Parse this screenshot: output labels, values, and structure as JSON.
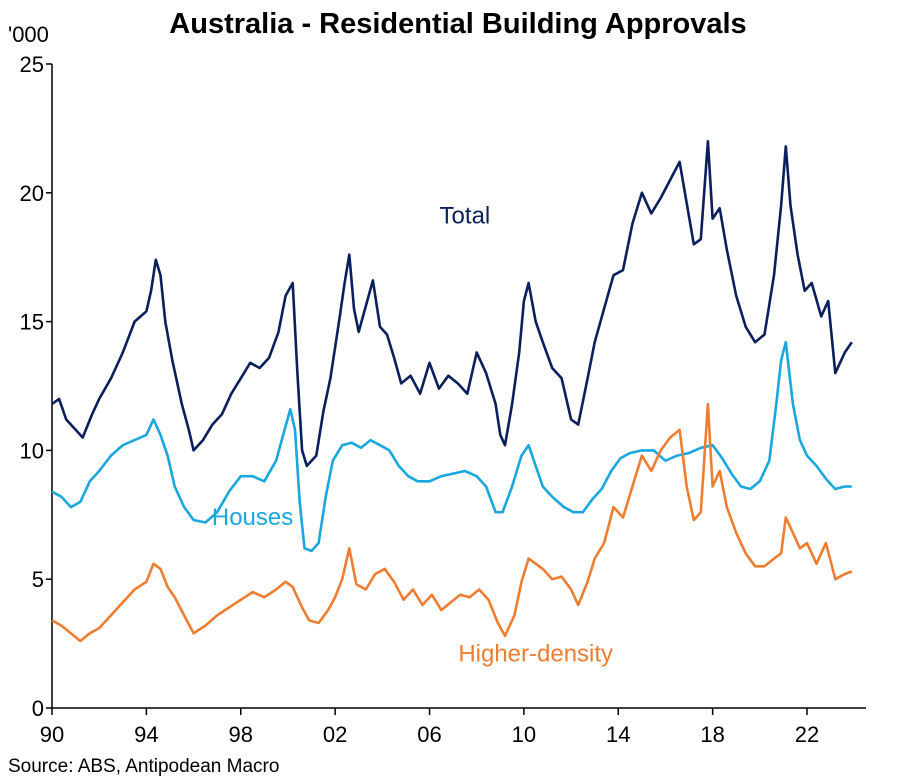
{
  "chart_data": {
    "type": "line",
    "title": "Australia - Residential Building Approvals",
    "unit_label": "'000",
    "source": "Source: ABS, Antipodean Macro",
    "ylim": [
      0,
      25
    ],
    "y_ticks": [
      "0",
      "5",
      "10",
      "15",
      "20",
      "25"
    ],
    "xlim": [
      1990,
      2024.5
    ],
    "x_ticks": [
      {
        "label": "90",
        "year": 1990
      },
      {
        "label": "94",
        "year": 1994
      },
      {
        "label": "98",
        "year": 1998
      },
      {
        "label": "02",
        "year": 2002
      },
      {
        "label": "06",
        "year": 2006
      },
      {
        "label": "10",
        "year": 2010
      },
      {
        "label": "14",
        "year": 2014
      },
      {
        "label": "18",
        "year": 2018
      },
      {
        "label": "22",
        "year": 2022
      }
    ],
    "grid": false,
    "series": [
      {
        "name": "Total",
        "color": "#0a1f5c",
        "label_at": [
          2007.5,
          18.8
        ],
        "points": [
          [
            1990.0,
            11.8
          ],
          [
            1990.3,
            12.0
          ],
          [
            1990.6,
            11.2
          ],
          [
            1991.0,
            10.8
          ],
          [
            1991.3,
            10.5
          ],
          [
            1991.7,
            11.4
          ],
          [
            1992.0,
            12.0
          ],
          [
            1992.5,
            12.8
          ],
          [
            1993.0,
            13.8
          ],
          [
            1993.5,
            15.0
          ],
          [
            1994.0,
            15.4
          ],
          [
            1994.2,
            16.2
          ],
          [
            1994.4,
            17.4
          ],
          [
            1994.6,
            16.8
          ],
          [
            1994.8,
            15.0
          ],
          [
            1995.1,
            13.5
          ],
          [
            1995.5,
            11.8
          ],
          [
            1995.8,
            10.8
          ],
          [
            1996.0,
            10.0
          ],
          [
            1996.4,
            10.4
          ],
          [
            1996.8,
            11.0
          ],
          [
            1997.2,
            11.4
          ],
          [
            1997.6,
            12.2
          ],
          [
            1998.0,
            12.8
          ],
          [
            1998.4,
            13.4
          ],
          [
            1998.8,
            13.2
          ],
          [
            1999.2,
            13.6
          ],
          [
            1999.6,
            14.6
          ],
          [
            1999.9,
            16.0
          ],
          [
            2000.2,
            16.5
          ],
          [
            2000.4,
            13.0
          ],
          [
            2000.6,
            10.0
          ],
          [
            2000.8,
            9.4
          ],
          [
            2001.2,
            9.8
          ],
          [
            2001.5,
            11.5
          ],
          [
            2001.8,
            12.8
          ],
          [
            2002.0,
            14.0
          ],
          [
            2002.2,
            15.2
          ],
          [
            2002.4,
            16.5
          ],
          [
            2002.6,
            17.6
          ],
          [
            2002.8,
            15.5
          ],
          [
            2003.0,
            14.6
          ],
          [
            2003.3,
            15.6
          ],
          [
            2003.6,
            16.6
          ],
          [
            2003.9,
            14.8
          ],
          [
            2004.2,
            14.5
          ],
          [
            2004.5,
            13.6
          ],
          [
            2004.8,
            12.6
          ],
          [
            2005.2,
            12.9
          ],
          [
            2005.6,
            12.2
          ],
          [
            2006.0,
            13.4
          ],
          [
            2006.4,
            12.4
          ],
          [
            2006.8,
            12.9
          ],
          [
            2007.2,
            12.6
          ],
          [
            2007.6,
            12.2
          ],
          [
            2008.0,
            13.8
          ],
          [
            2008.4,
            13.0
          ],
          [
            2008.8,
            11.8
          ],
          [
            2009.0,
            10.6
          ],
          [
            2009.2,
            10.2
          ],
          [
            2009.5,
            11.8
          ],
          [
            2009.8,
            13.8
          ],
          [
            2010.0,
            15.8
          ],
          [
            2010.2,
            16.5
          ],
          [
            2010.5,
            15.0
          ],
          [
            2010.8,
            14.2
          ],
          [
            2011.2,
            13.2
          ],
          [
            2011.6,
            12.8
          ],
          [
            2012.0,
            11.2
          ],
          [
            2012.3,
            11.0
          ],
          [
            2012.7,
            12.8
          ],
          [
            2013.0,
            14.2
          ],
          [
            2013.4,
            15.5
          ],
          [
            2013.8,
            16.8
          ],
          [
            2014.2,
            17.0
          ],
          [
            2014.6,
            18.8
          ],
          [
            2015.0,
            20.0
          ],
          [
            2015.4,
            19.2
          ],
          [
            2015.8,
            19.8
          ],
          [
            2016.2,
            20.5
          ],
          [
            2016.6,
            21.2
          ],
          [
            2016.9,
            19.6
          ],
          [
            2017.2,
            18.0
          ],
          [
            2017.5,
            18.2
          ],
          [
            2017.8,
            22.0
          ],
          [
            2018.0,
            19.0
          ],
          [
            2018.3,
            19.4
          ],
          [
            2018.6,
            17.8
          ],
          [
            2019.0,
            16.0
          ],
          [
            2019.4,
            14.8
          ],
          [
            2019.8,
            14.2
          ],
          [
            2020.2,
            14.5
          ],
          [
            2020.6,
            16.8
          ],
          [
            2020.9,
            19.5
          ],
          [
            2021.1,
            21.8
          ],
          [
            2021.3,
            19.5
          ],
          [
            2021.6,
            17.6
          ],
          [
            2021.9,
            16.2
          ],
          [
            2022.2,
            16.5
          ],
          [
            2022.6,
            15.2
          ],
          [
            2022.9,
            15.8
          ],
          [
            2023.2,
            13.0
          ],
          [
            2023.6,
            13.8
          ],
          [
            2023.9,
            14.2
          ]
        ]
      },
      {
        "name": "Houses",
        "color": "#1aa7e0",
        "label_at": [
          1998.5,
          7.1
        ],
        "points": [
          [
            1990.0,
            8.4
          ],
          [
            1990.4,
            8.2
          ],
          [
            1990.8,
            7.8
          ],
          [
            1991.2,
            8.0
          ],
          [
            1991.6,
            8.8
          ],
          [
            1992.0,
            9.2
          ],
          [
            1992.5,
            9.8
          ],
          [
            1993.0,
            10.2
          ],
          [
            1993.5,
            10.4
          ],
          [
            1994.0,
            10.6
          ],
          [
            1994.3,
            11.2
          ],
          [
            1994.6,
            10.6
          ],
          [
            1994.9,
            9.8
          ],
          [
            1995.2,
            8.6
          ],
          [
            1995.6,
            7.8
          ],
          [
            1996.0,
            7.3
          ],
          [
            1996.5,
            7.2
          ],
          [
            1997.0,
            7.6
          ],
          [
            1997.5,
            8.4
          ],
          [
            1998.0,
            9.0
          ],
          [
            1998.5,
            9.0
          ],
          [
            1999.0,
            8.8
          ],
          [
            1999.5,
            9.6
          ],
          [
            1999.8,
            10.6
          ],
          [
            2000.1,
            11.6
          ],
          [
            2000.3,
            10.8
          ],
          [
            2000.5,
            8.0
          ],
          [
            2000.7,
            6.2
          ],
          [
            2001.0,
            6.1
          ],
          [
            2001.3,
            6.4
          ],
          [
            2001.6,
            8.2
          ],
          [
            2001.9,
            9.6
          ],
          [
            2002.3,
            10.2
          ],
          [
            2002.7,
            10.3
          ],
          [
            2003.1,
            10.1
          ],
          [
            2003.5,
            10.4
          ],
          [
            2003.9,
            10.2
          ],
          [
            2004.3,
            10.0
          ],
          [
            2004.7,
            9.4
          ],
          [
            2005.1,
            9.0
          ],
          [
            2005.5,
            8.8
          ],
          [
            2006.0,
            8.8
          ],
          [
            2006.5,
            9.0
          ],
          [
            2007.0,
            9.1
          ],
          [
            2007.5,
            9.2
          ],
          [
            2008.0,
            9.0
          ],
          [
            2008.4,
            8.6
          ],
          [
            2008.8,
            7.6
          ],
          [
            2009.1,
            7.6
          ],
          [
            2009.5,
            8.6
          ],
          [
            2009.9,
            9.8
          ],
          [
            2010.2,
            10.2
          ],
          [
            2010.5,
            9.4
          ],
          [
            2010.8,
            8.6
          ],
          [
            2011.2,
            8.2
          ],
          [
            2011.7,
            7.8
          ],
          [
            2012.1,
            7.6
          ],
          [
            2012.5,
            7.6
          ],
          [
            2012.9,
            8.1
          ],
          [
            2013.3,
            8.5
          ],
          [
            2013.7,
            9.2
          ],
          [
            2014.1,
            9.7
          ],
          [
            2014.5,
            9.9
          ],
          [
            2015.0,
            10.0
          ],
          [
            2015.5,
            10.0
          ],
          [
            2016.0,
            9.6
          ],
          [
            2016.5,
            9.8
          ],
          [
            2017.0,
            9.9
          ],
          [
            2017.5,
            10.1
          ],
          [
            2018.0,
            10.2
          ],
          [
            2018.4,
            9.7
          ],
          [
            2018.8,
            9.1
          ],
          [
            2019.2,
            8.6
          ],
          [
            2019.6,
            8.5
          ],
          [
            2020.0,
            8.8
          ],
          [
            2020.4,
            9.6
          ],
          [
            2020.7,
            11.8
          ],
          [
            2020.9,
            13.5
          ],
          [
            2021.1,
            14.2
          ],
          [
            2021.4,
            11.8
          ],
          [
            2021.7,
            10.4
          ],
          [
            2022.0,
            9.8
          ],
          [
            2022.4,
            9.4
          ],
          [
            2022.8,
            8.9
          ],
          [
            2023.2,
            8.5
          ],
          [
            2023.6,
            8.6
          ],
          [
            2023.9,
            8.6
          ]
        ]
      },
      {
        "name": "Higher-density",
        "color": "#ee7d31",
        "label_at": [
          2010.5,
          1.8
        ],
        "points": [
          [
            1990.0,
            3.4
          ],
          [
            1990.4,
            3.2
          ],
          [
            1990.8,
            2.9
          ],
          [
            1991.2,
            2.6
          ],
          [
            1991.6,
            2.9
          ],
          [
            1992.0,
            3.1
          ],
          [
            1992.5,
            3.6
          ],
          [
            1993.0,
            4.1
          ],
          [
            1993.5,
            4.6
          ],
          [
            1994.0,
            4.9
          ],
          [
            1994.3,
            5.6
          ],
          [
            1994.6,
            5.4
          ],
          [
            1994.9,
            4.7
          ],
          [
            1995.2,
            4.3
          ],
          [
            1995.6,
            3.6
          ],
          [
            1996.0,
            2.9
          ],
          [
            1996.5,
            3.2
          ],
          [
            1997.0,
            3.6
          ],
          [
            1997.5,
            3.9
          ],
          [
            1998.0,
            4.2
          ],
          [
            1998.5,
            4.5
          ],
          [
            1999.0,
            4.3
          ],
          [
            1999.5,
            4.6
          ],
          [
            1999.9,
            4.9
          ],
          [
            2000.2,
            4.7
          ],
          [
            2000.6,
            3.9
          ],
          [
            2000.9,
            3.4
          ],
          [
            2001.3,
            3.3
          ],
          [
            2001.7,
            3.8
          ],
          [
            2002.0,
            4.3
          ],
          [
            2002.3,
            5.0
          ],
          [
            2002.6,
            6.2
          ],
          [
            2002.9,
            4.8
          ],
          [
            2003.3,
            4.6
          ],
          [
            2003.7,
            5.2
          ],
          [
            2004.1,
            5.4
          ],
          [
            2004.5,
            4.9
          ],
          [
            2004.9,
            4.2
          ],
          [
            2005.3,
            4.6
          ],
          [
            2005.7,
            4.0
          ],
          [
            2006.1,
            4.4
          ],
          [
            2006.5,
            3.8
          ],
          [
            2006.9,
            4.1
          ],
          [
            2007.3,
            4.4
          ],
          [
            2007.7,
            4.3
          ],
          [
            2008.1,
            4.6
          ],
          [
            2008.5,
            4.2
          ],
          [
            2008.9,
            3.3
          ],
          [
            2009.2,
            2.8
          ],
          [
            2009.6,
            3.6
          ],
          [
            2009.9,
            4.9
          ],
          [
            2010.2,
            5.8
          ],
          [
            2010.5,
            5.6
          ],
          [
            2010.8,
            5.4
          ],
          [
            2011.2,
            5.0
          ],
          [
            2011.6,
            5.1
          ],
          [
            2012.0,
            4.6
          ],
          [
            2012.3,
            4.0
          ],
          [
            2012.7,
            4.9
          ],
          [
            2013.0,
            5.8
          ],
          [
            2013.4,
            6.4
          ],
          [
            2013.8,
            7.8
          ],
          [
            2014.2,
            7.4
          ],
          [
            2014.6,
            8.6
          ],
          [
            2015.0,
            9.8
          ],
          [
            2015.4,
            9.2
          ],
          [
            2015.8,
            10.0
          ],
          [
            2016.2,
            10.5
          ],
          [
            2016.6,
            10.8
          ],
          [
            2016.9,
            8.6
          ],
          [
            2017.2,
            7.3
          ],
          [
            2017.5,
            7.6
          ],
          [
            2017.8,
            11.8
          ],
          [
            2018.0,
            8.6
          ],
          [
            2018.3,
            9.2
          ],
          [
            2018.6,
            7.8
          ],
          [
            2019.0,
            6.8
          ],
          [
            2019.4,
            6.0
          ],
          [
            2019.8,
            5.5
          ],
          [
            2020.2,
            5.5
          ],
          [
            2020.6,
            5.8
          ],
          [
            2020.9,
            6.0
          ],
          [
            2021.1,
            7.4
          ],
          [
            2021.4,
            6.8
          ],
          [
            2021.7,
            6.2
          ],
          [
            2022.0,
            6.4
          ],
          [
            2022.4,
            5.6
          ],
          [
            2022.8,
            6.4
          ],
          [
            2023.2,
            5.0
          ],
          [
            2023.6,
            5.2
          ],
          [
            2023.9,
            5.3
          ]
        ]
      }
    ]
  }
}
